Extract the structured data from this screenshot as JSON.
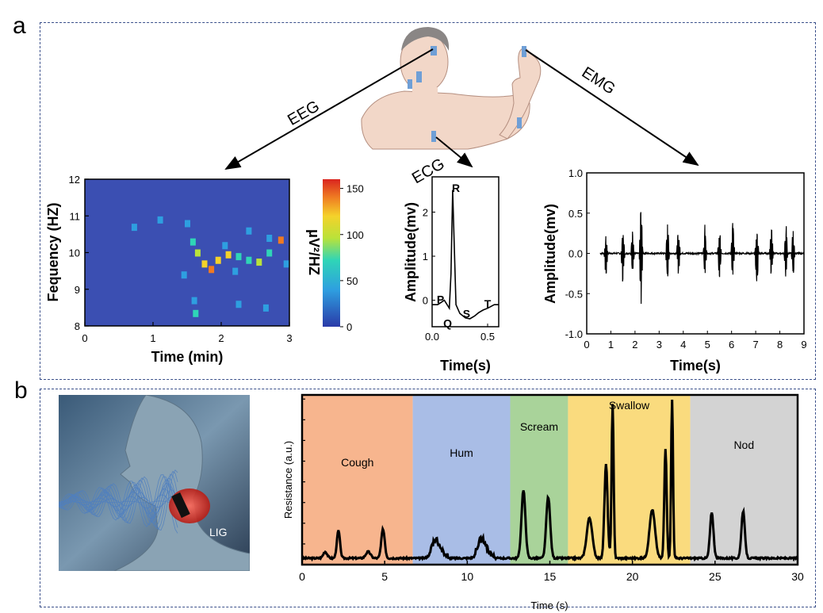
{
  "panels": {
    "a": "a",
    "b": "b"
  },
  "signals": {
    "eeg": "EEG",
    "ecg": "ECG",
    "emg": "EMG"
  },
  "colors": {
    "box": "#3a4f8a",
    "skin": "#f2d7c8",
    "electrode": "#6f9fd6",
    "cough": "#f7b58e",
    "hum": "#a9bde6",
    "scream": "#a9d39a",
    "swallow": "#fadb7e",
    "nod": "#d3d3d3",
    "laser": "#e63b2e"
  },
  "device_label": "LIG",
  "chart_data": [
    {
      "id": "eeg",
      "type": "heatmap",
      "xlabel": "Time (min)",
      "ylabel": "Fequency (HZ)",
      "xlim": [
        0,
        3
      ],
      "ylim": [
        8,
        12
      ],
      "x_ticks": [
        "0",
        "1",
        "2",
        "3"
      ],
      "y_ticks": [
        "8",
        "9",
        "10",
        "11",
        "12"
      ],
      "colorbar": {
        "label": "μV²/HZ",
        "ticks": [
          "0",
          "50",
          "100",
          "150"
        ],
        "range": [
          0,
          160
        ]
      },
      "hotspots": [
        {
          "t": 1.58,
          "f": 10.3,
          "v": 95
        },
        {
          "t": 1.65,
          "f": 10.0,
          "v": 110
        },
        {
          "t": 1.75,
          "f": 9.7,
          "v": 135
        },
        {
          "t": 1.85,
          "f": 9.55,
          "v": 155
        },
        {
          "t": 1.95,
          "f": 9.8,
          "v": 120
        },
        {
          "t": 2.1,
          "f": 9.95,
          "v": 130
        },
        {
          "t": 2.25,
          "f": 9.9,
          "v": 90
        },
        {
          "t": 2.4,
          "f": 9.8,
          "v": 95
        },
        {
          "t": 2.55,
          "f": 9.75,
          "v": 100
        },
        {
          "t": 2.7,
          "f": 10.0,
          "v": 80
        },
        {
          "t": 2.87,
          "f": 10.35,
          "v": 150
        },
        {
          "t": 1.62,
          "f": 8.35,
          "v": 95
        },
        {
          "t": 1.6,
          "f": 8.7,
          "v": 60
        },
        {
          "t": 2.25,
          "f": 8.6,
          "v": 60
        },
        {
          "t": 2.65,
          "f": 8.5,
          "v": 55
        },
        {
          "t": 0.72,
          "f": 10.7,
          "v": 40
        },
        {
          "t": 1.1,
          "f": 10.9,
          "v": 45
        },
        {
          "t": 1.5,
          "f": 10.8,
          "v": 50
        },
        {
          "t": 2.4,
          "f": 10.6,
          "v": 50
        },
        {
          "t": 2.7,
          "f": 10.4,
          "v": 60
        },
        {
          "t": 1.45,
          "f": 9.4,
          "v": 40
        },
        {
          "t": 2.2,
          "f": 9.5,
          "v": 55
        },
        {
          "t": 2.95,
          "f": 9.7,
          "v": 65
        },
        {
          "t": 2.05,
          "f": 10.2,
          "v": 70
        }
      ]
    },
    {
      "id": "ecg",
      "type": "line",
      "xlabel": "Time(s)",
      "ylabel": "Amplitude(mv)",
      "xlim": [
        0,
        0.6
      ],
      "ylim": [
        -0.6,
        2.8
      ],
      "x_ticks": [
        "0.0",
        "0.5"
      ],
      "y_ticks": [
        "0",
        "1",
        "2"
      ],
      "points": [
        [
          0,
          -0.1
        ],
        [
          0.05,
          -0.1
        ],
        [
          0.08,
          -0.05
        ],
        [
          0.11,
          0.0
        ],
        [
          0.13,
          -0.08
        ],
        [
          0.155,
          -0.18
        ],
        [
          0.17,
          0.6
        ],
        [
          0.185,
          2.5
        ],
        [
          0.2,
          1.2
        ],
        [
          0.215,
          -0.1
        ],
        [
          0.25,
          -0.3
        ],
        [
          0.3,
          -0.4
        ],
        [
          0.34,
          -0.42
        ],
        [
          0.38,
          -0.36
        ],
        [
          0.42,
          -0.28
        ],
        [
          0.46,
          -0.22
        ],
        [
          0.5,
          -0.18
        ],
        [
          0.53,
          -0.14
        ],
        [
          0.56,
          -0.1
        ],
        [
          0.6,
          -0.1
        ]
      ],
      "annotations": [
        {
          "text": "R",
          "x": 0.215,
          "y": 2.55
        },
        {
          "text": "P",
          "x": 0.075,
          "y": 0.02
        },
        {
          "text": "Q",
          "x": 0.14,
          "y": -0.52
        },
        {
          "text": "S",
          "x": 0.31,
          "y": -0.3
        },
        {
          "text": "T",
          "x": 0.5,
          "y": -0.08
        }
      ]
    },
    {
      "id": "emg",
      "type": "line",
      "xlabel": "Time(s)",
      "ylabel": "Amplitude(mv)",
      "xlim": [
        0,
        9
      ],
      "ylim": [
        -1.0,
        1.0
      ],
      "x_ticks": [
        "0",
        "1",
        "2",
        "3",
        "4",
        "5",
        "6",
        "7",
        "8",
        "9"
      ],
      "y_ticks": [
        "-1.0",
        "-0.5",
        "0.0",
        "0.5",
        "1.0"
      ],
      "bursts": [
        {
          "t": 0.8,
          "a": 0.25,
          "n": 0.35
        },
        {
          "t": 1.5,
          "a": 0.3,
          "n": 0.45
        },
        {
          "t": 1.9,
          "a": 0.35,
          "n": 0.25
        },
        {
          "t": 2.25,
          "a": 0.75,
          "n": 0.7
        },
        {
          "t": 3.35,
          "a": 0.42,
          "n": 0.45
        },
        {
          "t": 3.8,
          "a": 0.35,
          "n": 0.3
        },
        {
          "t": 4.9,
          "a": 0.4,
          "n": 0.3
        },
        {
          "t": 5.5,
          "a": 0.4,
          "n": 0.35
        },
        {
          "t": 6.05,
          "a": 0.45,
          "n": 0.35
        },
        {
          "t": 7.05,
          "a": 0.45,
          "n": 0.5
        },
        {
          "t": 7.65,
          "a": 0.45,
          "n": 0.4
        },
        {
          "t": 8.25,
          "a": 0.45,
          "n": 0.35
        },
        {
          "t": 8.55,
          "a": 0.35,
          "n": 0.3
        }
      ]
    },
    {
      "id": "resistance",
      "type": "line",
      "xlabel": "Time (s)",
      "ylabel": "Resistance (a.u.)",
      "xlim": [
        0,
        30
      ],
      "ylim": [
        0,
        1
      ],
      "x_ticks": [
        "0",
        "5",
        "10",
        "15",
        "20",
        "25",
        "30"
      ],
      "regions": [
        {
          "label": "Cough",
          "start": 0,
          "end": 6.7,
          "color": "#f7b58e"
        },
        {
          "label": "Hum",
          "start": 6.7,
          "end": 12.6,
          "color": "#a9bde6"
        },
        {
          "label": "Scream",
          "start": 12.6,
          "end": 16.1,
          "color": "#a9d39a"
        },
        {
          "label": "Swallow",
          "start": 16.1,
          "end": 23.5,
          "color": "#fadb7e"
        },
        {
          "label": "Nod",
          "start": 23.5,
          "end": 30,
          "color": "#d3d3d3"
        }
      ],
      "peaks": [
        {
          "t": 1.4,
          "h": 0.04,
          "w": 0.25
        },
        {
          "t": 2.2,
          "h": 0.17,
          "w": 0.2
        },
        {
          "t": 4.0,
          "h": 0.04,
          "w": 0.3
        },
        {
          "t": 4.9,
          "h": 0.18,
          "w": 0.22
        },
        {
          "t": 8.1,
          "h": 0.1,
          "w": 0.5
        },
        {
          "t": 10.9,
          "h": 0.1,
          "w": 0.5
        },
        {
          "t": 13.4,
          "h": 0.42,
          "w": 0.25
        },
        {
          "t": 14.9,
          "h": 0.38,
          "w": 0.25
        },
        {
          "t": 17.4,
          "h": 0.25,
          "w": 0.35
        },
        {
          "t": 18.4,
          "h": 0.58,
          "w": 0.2
        },
        {
          "t": 18.8,
          "h": 0.95,
          "w": 0.13
        },
        {
          "t": 21.2,
          "h": 0.3,
          "w": 0.35
        },
        {
          "t": 22.0,
          "h": 0.68,
          "w": 0.15
        },
        {
          "t": 22.4,
          "h": 1.0,
          "w": 0.12
        },
        {
          "t": 24.8,
          "h": 0.28,
          "w": 0.22
        },
        {
          "t": 26.7,
          "h": 0.29,
          "w": 0.22
        }
      ]
    }
  ]
}
